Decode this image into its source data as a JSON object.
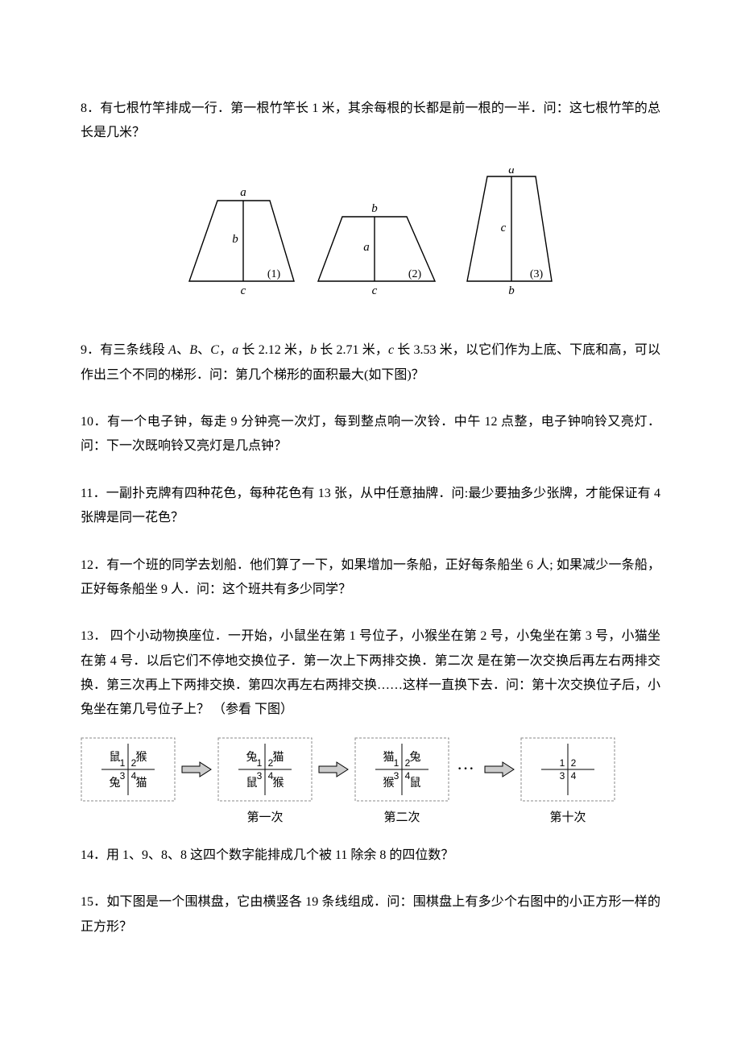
{
  "q8": "8．有七根竹竿排成一行．第一根竹竿长 1 米，其余每根的长都是前一根的一半．问：这七根竹竿的总长是几米？",
  "q9": {
    "text_a": "9．有三条线段 ",
    "A": "A",
    "sep1": "、",
    "B": "B",
    "sep2": "、",
    "C": "C",
    "sep3": "，",
    "a": "a",
    "a_len": " 长 2.12 米，",
    "b": "b",
    "b_len": " 长 2.71 米，",
    "c": "c",
    "c_len": " 长 3.53 米，以它们作为上底、下底和高，可以作出三个不同的梯形．问：第几个梯形的面积最大(如下图)？"
  },
  "q10": "10．有一个电子钟，每走 9 分钟亮一次灯，每到整点响一次铃．中午 12 点整，电子钟响铃又亮灯．问：下一次既响铃又亮灯是几点钟？",
  "q11": "11．一副扑克牌有四种花色，每种花色有 13 张，从中任意抽牌．问:最少要抽多少张牌，才能保证有 4 张牌是同一花色？",
  "q12": "12．有一个班的同学去划船．他们算了一下，如果增加一条船，正好每条船坐 6 人; 如果减少一条船，正好每条船坐 9 人．问：这个班共有多少同学？",
  "q13": "13．  四个小动物换座位．一开始，小鼠坐在第 1 号位子，小猴坐在第 2 号，小兔坐在第 3 号，小猫坐在第 4 号．以后它们不停地交换位子．第一次上下两排交换．第二次  是在第一次交换后再左右两排交换．第三次再上下两排交换．第四次再左右两排交换……这样一直换下去．问：第十次交换位子后，小兔坐在第几号位子上？  （参看  下图）",
  "q14": "14．用 1、9、8、8 这四个数字能排成几个被 11 除余 8 的四位数？",
  "q15": "15．如下图是一个围棋盘，它由横竖各 19 条线组成．问：围棋盘上有多少个右图中的小正方形一样的正方形？",
  "trapezoids": {
    "labels": {
      "a": "a",
      "b": "b",
      "c": "c",
      "n1": "(1)",
      "n2": "(2)",
      "n3": "(3)"
    },
    "stroke": "#000000",
    "stroke_width": 1.4,
    "font_size": 15,
    "font_style": "italic",
    "font_family": "Times New Roman, serif"
  },
  "seats": {
    "font_size": 14,
    "border_color": "#888888",
    "inner_line": "#000000",
    "num_font": 12,
    "dots": "···",
    "panels": [
      {
        "cells": [
          {
            "t": "鼠",
            "n": "1"
          },
          {
            "t": "猴",
            "n": "2"
          },
          {
            "t": "兔",
            "n": "3"
          },
          {
            "t": "猫",
            "n": "4"
          }
        ],
        "caption": ""
      },
      {
        "cells": [
          {
            "t": "兔",
            "n": "1"
          },
          {
            "t": "猫",
            "n": "2"
          },
          {
            "t": "鼠",
            "n": "3"
          },
          {
            "t": "猴",
            "n": "4"
          }
        ],
        "caption": "第一次"
      },
      {
        "cells": [
          {
            "t": "猫",
            "n": "1"
          },
          {
            "t": "兔",
            "n": "2"
          },
          {
            "t": "猴",
            "n": "3"
          },
          {
            "t": "鼠",
            "n": "4"
          }
        ],
        "caption": "第二次"
      },
      {
        "cells": [
          {
            "t": "",
            "n": "1"
          },
          {
            "t": "",
            "n": "2"
          },
          {
            "t": "",
            "n": "3"
          },
          {
            "t": "",
            "n": "4"
          }
        ],
        "caption": "第十次"
      }
    ],
    "arrow": {
      "stroke": "#000000",
      "fill": "#cccccc"
    }
  }
}
